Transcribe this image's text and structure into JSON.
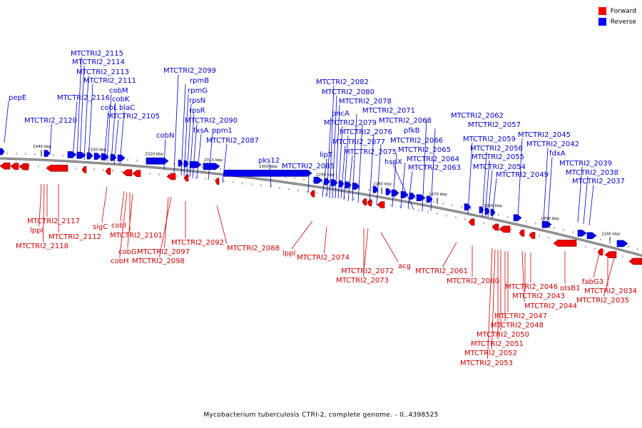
{
  "legend": [
    {
      "label": "Forward",
      "color": "#ff0000"
    },
    {
      "label": "Reverse",
      "color": "#0000ff"
    }
  ],
  "caption": "Mycobacterium tuberculosis CTRI-2, complete genome. - 0..4398525",
  "colors": {
    "forward": "#ee0000",
    "reverse": "#0000ee",
    "label_forward": "#cc0000",
    "label_reverse": "#0000cc",
    "backbone": "#888888"
  },
  "scale_ticks": [
    "2340 kbp",
    "2330 kbp",
    "2320 kbp",
    "2310 kbp",
    "2300 kbp",
    "2290 kbp",
    "2280 kbp",
    "2270 kbp",
    "2260 kbp",
    "2250 kbp",
    "2240 kbp"
  ],
  "forward_labels": [
    "MTCTRI2_2117",
    "lppI",
    "MTCTRI2_2118",
    "MTCTRI2_2112",
    "sigC",
    "cobI",
    "MTCTRI2_2101",
    "cobG",
    "cobH",
    "MTCTRI2_2097",
    "MTCTRI2_2098",
    "MTCTRI2_2092",
    "MTCTRI2_2088",
    "lppI",
    "MTCTRI2_2074",
    "MTCTRI2_2072",
    "MTCTRI2_2073",
    "acg",
    "MTCTRI2_2061",
    "MTCTRI2_2060",
    "MTCTRI2_2053",
    "MTCTRI2_2052",
    "MTCTRI2_2051",
    "MTCTRI2_2050",
    "MTCTRI2_2048",
    "MTCTRI2_2047",
    "MTCTRI2_2044",
    "MTCTRI2_2043",
    "MTCTRI2_2046",
    "otsB1",
    "fabG3",
    "MTCTRI2_2034",
    "MTCTRI2_2035"
  ],
  "reverse_labels": [
    "pepE",
    "MTCTRI2_2120",
    "MTCTRI2_2115",
    "MTCTRI2_2114",
    "MTCTRI2_2113",
    "MTCTRI2_2111",
    "MTCTRI2_2116",
    "cobM",
    "cobK",
    "cobL",
    "blaC",
    "MTCTRI2_2105",
    "cobN",
    "MTCTRI2_2099",
    "rpmB",
    "rpmG",
    "rpsN",
    "rpsR",
    "MTCTRI2_2090",
    "fxsA",
    "ppm1",
    "MTCTRI2_2087",
    "pks12",
    "MTCTRI2_2085",
    "lipT",
    "pncA",
    "MTCTRI2_2082",
    "MTCTRI2_2080",
    "MTCTRI2_2078",
    "MTCTRI2_2079",
    "MTCTRI2_2077",
    "MTCTRI2_2076",
    "MTCTRI2_2075",
    "MTCTRI2_2071",
    "MTCTRI2_2068",
    "pfkB",
    "MTCTRI2_2066",
    "MTCTRI2_2065",
    "MTCTRI2_2064",
    "MTCTRI2_2063",
    "hspX",
    "MTCTRI2_2062",
    "MTCTRI2_2057",
    "MTCTRI2_2059",
    "MTCTRI2_2056",
    "MTCTRI2_2055",
    "MTCTRI2_2054",
    "MTCTRI2_2049",
    "MTCTRI2_2045",
    "MTCTRI2_2042",
    "fdxA",
    "MTCTRI2_2039",
    "MTCTRI2_2038",
    "MTCTRI2_2037"
  ]
}
